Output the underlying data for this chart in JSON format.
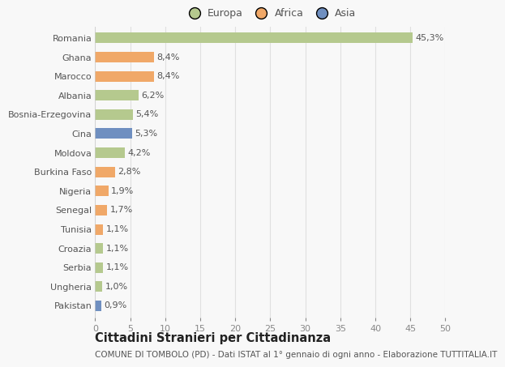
{
  "countries": [
    "Romania",
    "Ghana",
    "Marocco",
    "Albania",
    "Bosnia-Erzegovina",
    "Cina",
    "Moldova",
    "Burkina Faso",
    "Nigeria",
    "Senegal",
    "Tunisia",
    "Croazia",
    "Serbia",
    "Ungheria",
    "Pakistan"
  ],
  "values": [
    45.3,
    8.4,
    8.4,
    6.2,
    5.4,
    5.3,
    4.2,
    2.8,
    1.9,
    1.7,
    1.1,
    1.1,
    1.1,
    1.0,
    0.9
  ],
  "labels": [
    "45,3%",
    "8,4%",
    "8,4%",
    "6,2%",
    "5,4%",
    "5,3%",
    "4,2%",
    "2,8%",
    "1,9%",
    "1,7%",
    "1,1%",
    "1,1%",
    "1,1%",
    "1,0%",
    "0,9%"
  ],
  "continents": [
    "Europa",
    "Africa",
    "Africa",
    "Europa",
    "Europa",
    "Asia",
    "Europa",
    "Africa",
    "Africa",
    "Africa",
    "Africa",
    "Europa",
    "Europa",
    "Europa",
    "Asia"
  ],
  "colors": {
    "Europa": "#b5c98e",
    "Africa": "#f0a868",
    "Asia": "#6f8fc0"
  },
  "legend": [
    "Europa",
    "Africa",
    "Asia"
  ],
  "legend_colors": [
    "#b5c98e",
    "#f0a868",
    "#6f8fc0"
  ],
  "title": "Cittadini Stranieri per Cittadinanza",
  "subtitle": "COMUNE DI TOMBOLO (PD) - Dati ISTAT al 1° gennaio di ogni anno - Elaborazione TUTTITALIA.IT",
  "xlim": [
    0,
    50
  ],
  "xticks": [
    0,
    5,
    10,
    15,
    20,
    25,
    30,
    35,
    40,
    45,
    50
  ],
  "bg_color": "#f8f8f8",
  "grid_color": "#e0e0e0",
  "bar_height": 0.55,
  "label_fontsize": 8,
  "tick_fontsize": 8,
  "ytick_fontsize": 8,
  "title_fontsize": 10.5,
  "subtitle_fontsize": 7.5,
  "legend_fontsize": 9
}
